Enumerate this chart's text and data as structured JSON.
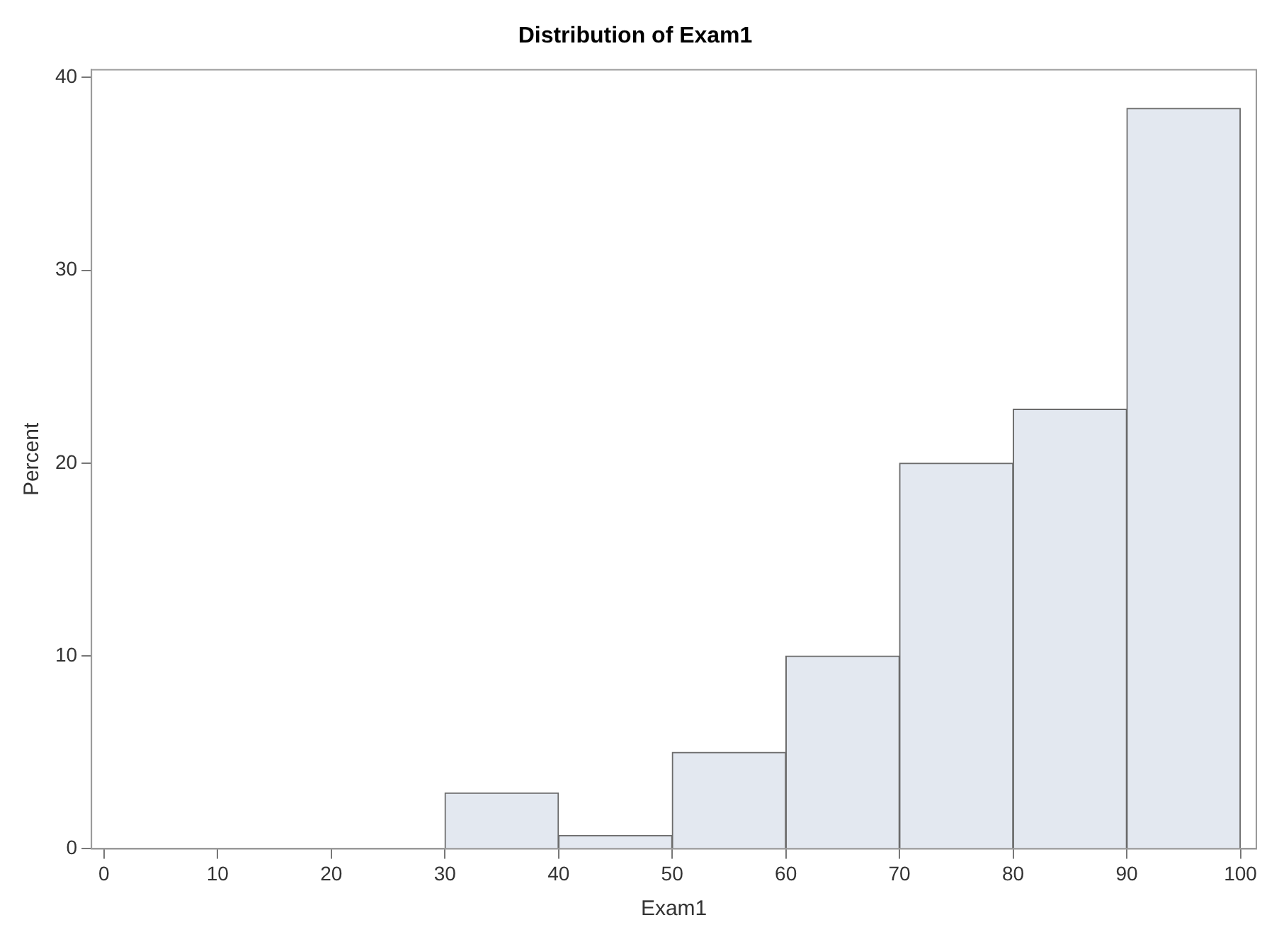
{
  "chart_data": {
    "type": "histogram",
    "title": "Distribution of Exam1",
    "xlabel": "Exam1",
    "ylabel": "Percent",
    "bins": [
      30,
      40,
      50,
      60,
      70,
      80,
      90,
      100
    ],
    "values": [
      2.9,
      0.7,
      5,
      10,
      20,
      22.8,
      38.4
    ],
    "color": "#e3e8f0",
    "xlim": [
      -1.1,
      101.4
    ],
    "xticks": [
      0,
      10,
      20,
      30,
      40,
      50,
      60,
      70,
      80,
      90,
      100
    ],
    "ylim": [
      0,
      40.4
    ],
    "yticks": [
      0,
      10,
      20,
      30,
      40
    ],
    "grid": false,
    "legend": false
  }
}
